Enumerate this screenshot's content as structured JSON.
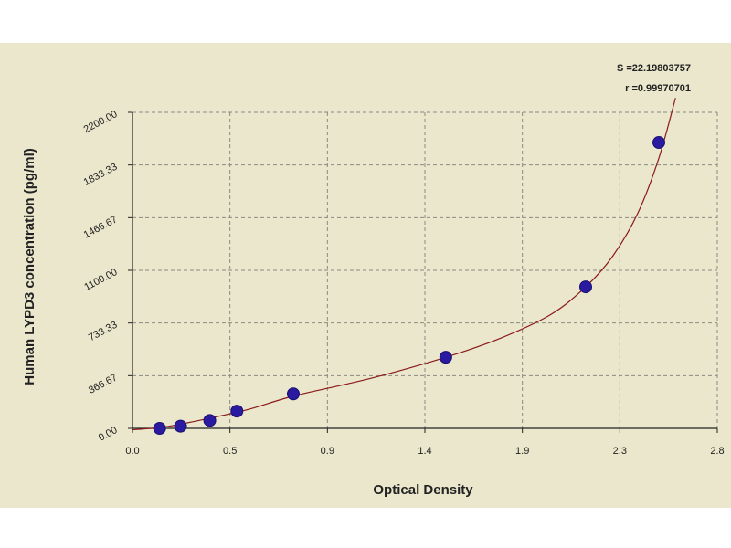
{
  "chart_data": {
    "type": "scatter",
    "xlabel": "Optical Density",
    "ylabel": "Human LYPD3 concentration (pg/ml)",
    "x_ticks": [
      "0.0",
      "0.5",
      "0.9",
      "1.4",
      "1.9",
      "2.3",
      "2.8"
    ],
    "y_ticks": [
      "0.00",
      "366.67",
      "733.33",
      "1100.00",
      "1466.67",
      "1833.33",
      "2200.00"
    ],
    "xlim": [
      0,
      2.8
    ],
    "ylim": [
      0,
      2200
    ],
    "grid": true,
    "series": [
      {
        "points": [
          {
            "x": 0.13,
            "y": 0
          },
          {
            "x": 0.23,
            "y": 15
          },
          {
            "x": 0.37,
            "y": 55
          },
          {
            "x": 0.5,
            "y": 120
          },
          {
            "x": 0.77,
            "y": 240
          },
          {
            "x": 1.5,
            "y": 495
          },
          {
            "x": 2.17,
            "y": 985
          },
          {
            "x": 2.52,
            "y": 1990
          }
        ],
        "color": "#2a1aa0",
        "fit_color": "#8b1a1a"
      }
    ],
    "fit_curve": [
      [
        0.0,
        -10
      ],
      [
        0.13,
        5
      ],
      [
        0.25,
        35
      ],
      [
        0.4,
        80
      ],
      [
        0.55,
        130
      ],
      [
        0.77,
        225
      ],
      [
        1.0,
        300
      ],
      [
        1.2,
        370
      ],
      [
        1.5,
        495
      ],
      [
        1.75,
        620
      ],
      [
        2.0,
        790
      ],
      [
        2.17,
        985
      ],
      [
        2.3,
        1200
      ],
      [
        2.42,
        1500
      ],
      [
        2.52,
        1880
      ],
      [
        2.6,
        2300
      ]
    ],
    "annotations": [
      "S =22.19803757",
      "r =0.99970701"
    ]
  }
}
